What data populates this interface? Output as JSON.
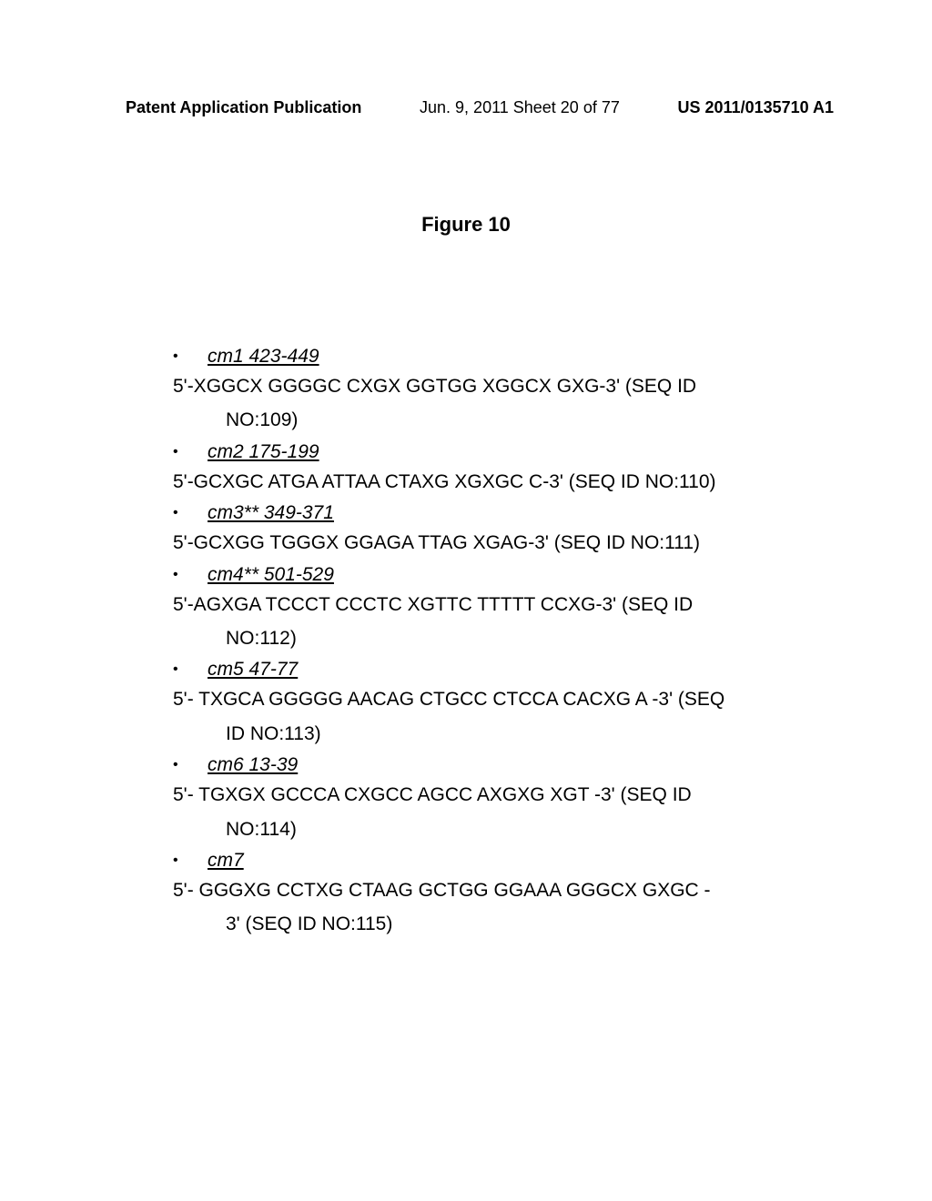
{
  "header": {
    "left": "Patent Application Publication",
    "center": "Jun. 9, 2011  Sheet 20 of 77",
    "right": "US 2011/0135710 A1"
  },
  "figure_title": "Figure 10",
  "entries": [
    {
      "label": "cm1 423-449",
      "sequence_lines": [
        "5'-XGGCX GGGGC CXGX GGTGG XGGCX GXG-3' (SEQ ID",
        "NO:109)"
      ]
    },
    {
      "label": "cm2 175-199",
      "sequence_lines": [
        "5'-GCXGC ATGA ATTAA CTAXG XGXGC C-3' (SEQ ID NO:110)"
      ]
    },
    {
      "label": "cm3** 349-371",
      "sequence_lines": [
        "5'-GCXGG TGGGX GGAGA TTAG XGAG-3' (SEQ ID NO:111)"
      ]
    },
    {
      "label": "cm4** 501-529",
      "sequence_lines": [
        "5'-AGXGA TCCCT CCCTC XGTTC TTTTT CCXG-3' (SEQ ID",
        "NO:112)"
      ]
    },
    {
      "label": "cm5 47-77",
      "sequence_lines": [
        "5'- TXGCA GGGGG AACAG CTGCC CTCCA CACXG A -3' (SEQ",
        "ID NO:113)"
      ]
    },
    {
      "label": "cm6 13-39",
      "sequence_lines": [
        "5'- TGXGX GCCCA CXGCC AGCC AXGXG XGT -3' (SEQ ID",
        "NO:114)"
      ]
    },
    {
      "label": "cm7",
      "sequence_lines": [
        "5'- GGGXG CCTXG CTAAG GCTGG GGAAA GGGCX  GXGC -",
        "3' (SEQ ID NO:115)"
      ]
    }
  ]
}
